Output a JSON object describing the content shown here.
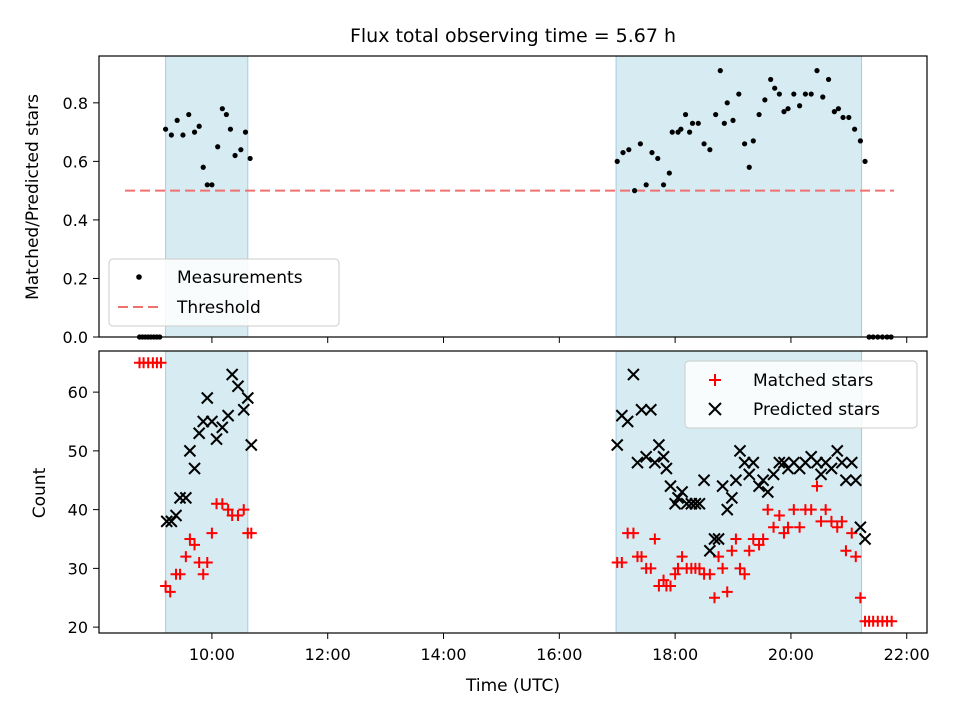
{
  "chart_data": [
    {
      "type": "scatter",
      "title": "Flux total observing time = 5.67 h",
      "xlabel": "",
      "ylabel": "Matched/Predicted stars",
      "x_unit": "hours UTC",
      "xlim": [
        8.05,
        22.35
      ],
      "ylim": [
        0.0,
        0.96
      ],
      "yticks": [
        0.0,
        0.2,
        0.4,
        0.6,
        0.8
      ],
      "ytick_labels": [
        "0.0",
        "0.2",
        "0.4",
        "0.6",
        "0.8"
      ],
      "legend_position": "lower-left",
      "shaded_intervals": [
        [
          9.2,
          10.62
        ],
        [
          16.98,
          21.22
        ]
      ],
      "threshold": {
        "name": "Threshold",
        "value": 0.5,
        "x_range": [
          8.5,
          21.78
        ],
        "color": "#f07070"
      },
      "series": [
        {
          "name": "Measurements",
          "color": "#000000",
          "x": [
            8.75,
            8.8,
            8.85,
            8.9,
            8.95,
            9.0,
            9.05,
            9.1,
            9.2,
            9.3,
            9.4,
            9.5,
            9.6,
            9.7,
            9.78,
            9.85,
            9.92,
            10.0,
            10.1,
            10.18,
            10.25,
            10.32,
            10.4,
            10.5,
            10.58,
            10.66,
            17.0,
            17.1,
            17.2,
            17.3,
            17.4,
            17.5,
            17.6,
            17.7,
            17.8,
            17.9,
            17.95,
            18.05,
            18.1,
            18.18,
            18.25,
            18.3,
            18.4,
            18.5,
            18.6,
            18.7,
            18.78,
            18.85,
            18.9,
            19.0,
            19.1,
            19.2,
            19.28,
            19.35,
            19.45,
            19.55,
            19.65,
            19.72,
            19.8,
            19.88,
            19.95,
            20.05,
            20.15,
            20.25,
            20.35,
            20.45,
            20.55,
            20.65,
            20.75,
            20.82,
            20.9,
            21.0,
            21.1,
            21.2,
            21.28,
            21.35,
            21.42,
            21.5,
            21.58,
            21.66,
            21.73
          ],
          "y": [
            0.0,
            0.0,
            0.0,
            0.0,
            0.0,
            0.0,
            0.0,
            0.0,
            0.71,
            0.69,
            0.74,
            0.69,
            0.76,
            0.7,
            0.72,
            0.58,
            0.52,
            0.52,
            0.65,
            0.78,
            0.76,
            0.71,
            0.62,
            0.64,
            0.7,
            0.61,
            0.6,
            0.63,
            0.64,
            0.5,
            0.66,
            0.52,
            0.63,
            0.61,
            0.52,
            0.56,
            0.7,
            0.7,
            0.71,
            0.76,
            0.7,
            0.73,
            0.73,
            0.66,
            0.64,
            0.76,
            0.91,
            0.73,
            0.8,
            0.74,
            0.83,
            0.66,
            0.58,
            0.67,
            0.76,
            0.81,
            0.88,
            0.85,
            0.83,
            0.77,
            0.78,
            0.83,
            0.79,
            0.83,
            0.83,
            0.91,
            0.82,
            0.88,
            0.77,
            0.78,
            0.75,
            0.75,
            0.71,
            0.67,
            0.6,
            0.0,
            0.0,
            0.0,
            0.0,
            0.0,
            0.0
          ]
        }
      ]
    },
    {
      "type": "scatter",
      "title": "",
      "xlabel": "Time (UTC)",
      "ylabel": "Count",
      "x_unit": "hours UTC",
      "xlim": [
        8.05,
        22.35
      ],
      "ylim": [
        19,
        67
      ],
      "yticks": [
        20,
        30,
        40,
        50,
        60
      ],
      "ytick_labels": [
        "20",
        "30",
        "40",
        "50",
        "60"
      ],
      "xticks": [
        10,
        12,
        14,
        16,
        18,
        20,
        22
      ],
      "xtick_labels": [
        "10:00",
        "12:00",
        "14:00",
        "16:00",
        "18:00",
        "20:00",
        "22:00"
      ],
      "legend_position": "top-right",
      "shaded_intervals": [
        [
          9.2,
          10.62
        ],
        [
          16.98,
          21.22
        ]
      ],
      "series": [
        {
          "name": "Matched stars",
          "marker": "plus",
          "color": "#ff0000",
          "x": [
            8.75,
            8.82,
            8.9,
            8.98,
            9.05,
            9.12,
            9.2,
            9.28,
            9.38,
            9.45,
            9.55,
            9.62,
            9.7,
            9.78,
            9.85,
            9.92,
            10.0,
            10.08,
            10.18,
            10.28,
            10.35,
            10.45,
            10.55,
            10.62,
            10.68,
            17.0,
            17.08,
            17.18,
            17.28,
            17.35,
            17.42,
            17.5,
            17.58,
            17.65,
            17.72,
            17.8,
            17.85,
            17.92,
            18.0,
            18.05,
            18.12,
            18.2,
            18.28,
            18.35,
            18.42,
            18.5,
            18.6,
            18.68,
            18.75,
            18.82,
            18.9,
            18.98,
            19.05,
            19.12,
            19.2,
            19.28,
            19.35,
            19.45,
            19.52,
            19.6,
            19.7,
            19.8,
            19.88,
            19.95,
            20.05,
            20.15,
            20.25,
            20.35,
            20.45,
            20.52,
            20.6,
            20.7,
            20.8,
            20.88,
            20.95,
            21.05,
            21.12,
            21.2,
            21.28,
            21.35,
            21.42,
            21.5,
            21.58,
            21.66,
            21.74
          ],
          "y": [
            65,
            65,
            65,
            65,
            65,
            65,
            27,
            26,
            29,
            29,
            32,
            35,
            34,
            31,
            29,
            31,
            36,
            41,
            41,
            40,
            39,
            39,
            40,
            36,
            36,
            31,
            31,
            36,
            36,
            32,
            32,
            30,
            30,
            35,
            27,
            28,
            27,
            27,
            29,
            30,
            32,
            30,
            30,
            30,
            30,
            29,
            29,
            25,
            32,
            30,
            26,
            33,
            35,
            30,
            29,
            33,
            35,
            34,
            35,
            40,
            37,
            39,
            36,
            37,
            40,
            37,
            40,
            40,
            44,
            38,
            40,
            38,
            37,
            38,
            33,
            36,
            32,
            25,
            21,
            21,
            21,
            21,
            21,
            21,
            21
          ]
        },
        {
          "name": "Predicted stars",
          "marker": "x",
          "color": "#000000",
          "x": [
            9.22,
            9.3,
            9.38,
            9.45,
            9.55,
            9.62,
            9.7,
            9.78,
            9.85,
            9.92,
            10.0,
            10.08,
            10.18,
            10.28,
            10.35,
            10.45,
            10.55,
            10.62,
            10.68,
            17.0,
            17.08,
            17.18,
            17.28,
            17.35,
            17.42,
            17.5,
            17.58,
            17.65,
            17.72,
            17.8,
            17.85,
            17.92,
            18.0,
            18.05,
            18.12,
            18.2,
            18.28,
            18.35,
            18.42,
            18.5,
            18.6,
            18.68,
            18.75,
            18.82,
            18.9,
            18.98,
            19.05,
            19.12,
            19.2,
            19.28,
            19.35,
            19.45,
            19.52,
            19.6,
            19.7,
            19.8,
            19.88,
            19.95,
            20.05,
            20.15,
            20.25,
            20.35,
            20.45,
            20.52,
            20.6,
            20.7,
            20.8,
            20.88,
            20.95,
            21.05,
            21.12,
            21.2,
            21.28
          ],
          "y": [
            38,
            38,
            39,
            42,
            42,
            50,
            47,
            53,
            55,
            59,
            55,
            52,
            54,
            56,
            63,
            61,
            57,
            59,
            51,
            51,
            56,
            55,
            63,
            48,
            57,
            49,
            57,
            48,
            51,
            49,
            47,
            44,
            41,
            42,
            43,
            41,
            41,
            41,
            41,
            45,
            33,
            35,
            35,
            44,
            40,
            42,
            45,
            50,
            48,
            46,
            48,
            44,
            45,
            43,
            46,
            48,
            48,
            47,
            48,
            47,
            48,
            49,
            48,
            46,
            48,
            47,
            50,
            48,
            45,
            48,
            45,
            37,
            35
          ]
        }
      ]
    }
  ]
}
